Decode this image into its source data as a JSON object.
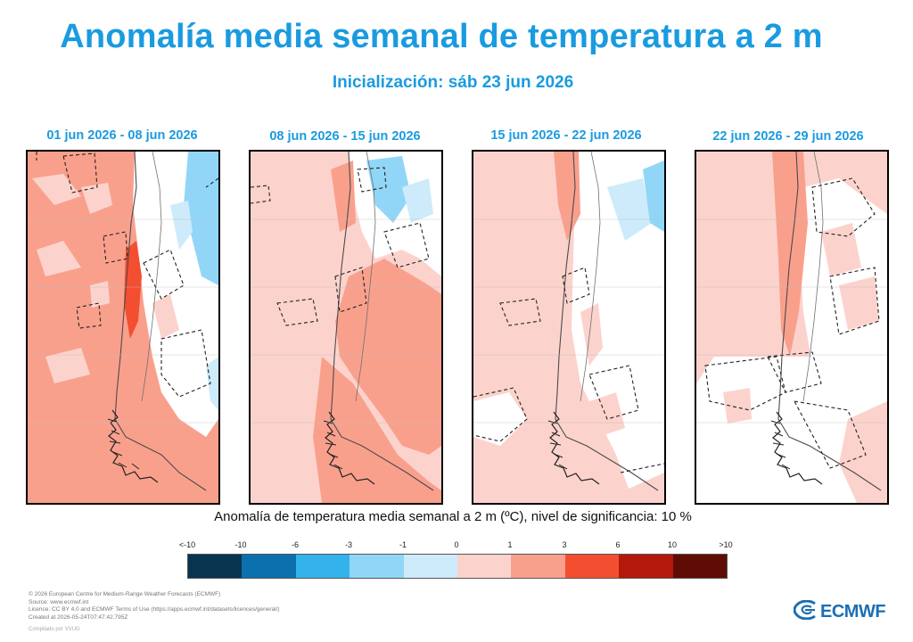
{
  "header": {
    "title": "Anomalía media semanal de temperatura a 2 m",
    "subtitle": "Inicialización: sáb 23 jun 2026"
  },
  "panels": [
    {
      "date_range": "01 jun 2026 - 08 jun 2026"
    },
    {
      "date_range": "08 jun 2026 - 15 jun 2026"
    },
    {
      "date_range": "15 jun 2026 - 22 jun 2026"
    },
    {
      "date_range": "22 jun 2026 - 29 jun 2026"
    }
  ],
  "legend": {
    "title": "Anomalía de temperatura media semanal a 2 m (ºC), nivel de significancia: 10 %",
    "ticks": [
      "<-10",
      "-10",
      "-6",
      "-3",
      "-1",
      "0",
      "1",
      "3",
      "6",
      "10",
      ">10"
    ],
    "colors": [
      "#08344f",
      "#0c70ad",
      "#34b2ec",
      "#92d6f7",
      "#cdebfa",
      "#fcd3cc",
      "#f9a08d",
      "#f44e31",
      "#b3180b",
      "#5e0c04"
    ]
  },
  "credits": {
    "line1": "© 2026 European Centre for Medium-Range Weather Forecasts (ECMWF)",
    "line2": "Source: www.ecmwf.int",
    "line3": "Licence: CC BY 4.0 and ECMWF Terms of Use (https://apps.ecmwf.int/datasets/licences/general/)",
    "line4": "Created at 2026-05-24T07:47:42.795Z",
    "footnote": "Compilado por VVUG"
  },
  "logo": {
    "text": "ECMWF",
    "icon": "ecmwf-logo-icon"
  }
}
